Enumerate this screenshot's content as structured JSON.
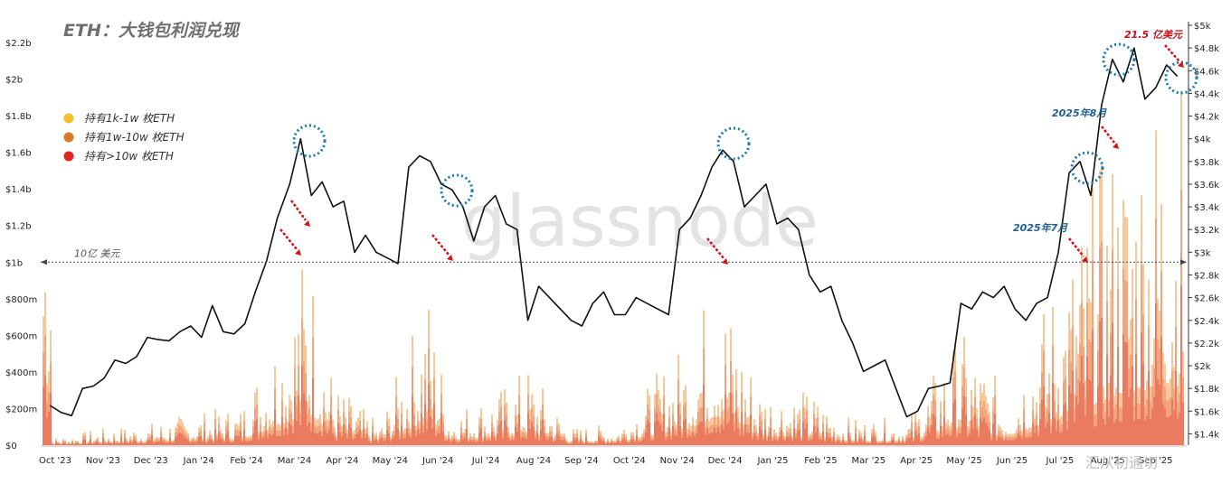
{
  "chart_data": {
    "type": "area",
    "title": "ETH：大钱包利润兑现",
    "watermark": "glassnode",
    "source_watermark": "汇从初通切",
    "x_tick_labels": [
      "Oct '23",
      "Nov '23",
      "Dec '23",
      "Jan '24",
      "Feb '24",
      "Mar '24",
      "Apr '24",
      "May '24",
      "Jun '24",
      "Jul '24",
      "Aug '24",
      "Sep '24",
      "Oct '24",
      "Nov '24",
      "Dec '24",
      "Jan '25",
      "Feb '25",
      "Mar '25",
      "Apr '25",
      "May '25",
      "Jun '25",
      "Jul '25",
      "Aug '25",
      "Sep '25"
    ],
    "y_left": {
      "unit": "USD",
      "ticks": [
        "$0",
        "$200m",
        "$400m",
        "$600m",
        "$800m",
        "$1b",
        "$1.2b",
        "$1.4b",
        "$1.6b",
        "$1.8b",
        "$2b",
        "$2.2b"
      ],
      "ylim": [
        0,
        2200000000
      ]
    },
    "y_right": {
      "unit": "ETH price USD",
      "ticks": [
        "$1.4k",
        "$1.6k",
        "$1.8k",
        "$2k",
        "$2.2k",
        "$2.4k",
        "$2.6k",
        "$2.8k",
        "$3k",
        "$3.2k",
        "$3.4k",
        "$3.6k",
        "$3.8k",
        "$4k",
        "$4.2k",
        "$4.4k",
        "$4.6k",
        "$4.8k",
        "$5k"
      ],
      "ylim": [
        1300,
        5000
      ]
    },
    "legend": [
      {
        "label": "持有1k-1w 枚ETH",
        "color": "#f4bd2a"
      },
      {
        "label": "持有1w-10w 枚ETH",
        "color": "#d9782a"
      },
      {
        "label": "持有>10w 枚ETH",
        "color": "#e0281f"
      }
    ],
    "series_colors": {
      "outer": "#f7c89c",
      "middle": "#f2a47c",
      "inner": "#ea7b60",
      "price": "#111111"
    },
    "reference_line": {
      "value": 1000000000,
      "label": "10亿 美元"
    },
    "annotations": [
      {
        "text": "2025年7月",
        "color": "#1d5e8f"
      },
      {
        "text": "2025年8月",
        "color": "#1d5e8f"
      },
      {
        "text": "21.5 亿美元",
        "color": "#c0121b"
      }
    ],
    "price_series": [
      [
        "2023-10-01",
        1650
      ],
      [
        "2023-10-08",
        1590
      ],
      [
        "2023-10-15",
        1560
      ],
      [
        "2023-10-22",
        1800
      ],
      [
        "2023-10-29",
        1820
      ],
      [
        "2023-11-05",
        1890
      ],
      [
        "2023-11-12",
        2050
      ],
      [
        "2023-11-19",
        2020
      ],
      [
        "2023-11-26",
        2080
      ],
      [
        "2023-12-03",
        2250
      ],
      [
        "2023-12-10",
        2230
      ],
      [
        "2023-12-17",
        2220
      ],
      [
        "2023-12-24",
        2300
      ],
      [
        "2023-12-31",
        2350
      ],
      [
        "2024-01-07",
        2250
      ],
      [
        "2024-01-14",
        2530
      ],
      [
        "2024-01-21",
        2300
      ],
      [
        "2024-01-28",
        2280
      ],
      [
        "2024-02-04",
        2370
      ],
      [
        "2024-02-11",
        2660
      ],
      [
        "2024-02-18",
        2920
      ],
      [
        "2024-02-25",
        3300
      ],
      [
        "2024-03-04",
        3600
      ],
      [
        "2024-03-11",
        4000
      ],
      [
        "2024-03-18",
        3500
      ],
      [
        "2024-03-25",
        3620
      ],
      [
        "2024-04-01",
        3400
      ],
      [
        "2024-04-08",
        3450
      ],
      [
        "2024-04-15",
        3000
      ],
      [
        "2024-04-22",
        3150
      ],
      [
        "2024-04-29",
        3000
      ],
      [
        "2024-05-06",
        2950
      ],
      [
        "2024-05-13",
        2900
      ],
      [
        "2024-05-20",
        3750
      ],
      [
        "2024-05-27",
        3850
      ],
      [
        "2024-06-03",
        3800
      ],
      [
        "2024-06-10",
        3600
      ],
      [
        "2024-06-17",
        3550
      ],
      [
        "2024-06-24",
        3400
      ],
      [
        "2024-07-01",
        3100
      ],
      [
        "2024-07-08",
        3400
      ],
      [
        "2024-07-15",
        3500
      ],
      [
        "2024-07-22",
        3250
      ],
      [
        "2024-07-29",
        3200
      ],
      [
        "2024-08-05",
        2400
      ],
      [
        "2024-08-12",
        2700
      ],
      [
        "2024-08-19",
        2600
      ],
      [
        "2024-08-26",
        2500
      ],
      [
        "2024-09-02",
        2400
      ],
      [
        "2024-09-09",
        2350
      ],
      [
        "2024-09-16",
        2550
      ],
      [
        "2024-09-23",
        2650
      ],
      [
        "2024-09-30",
        2450
      ],
      [
        "2024-10-07",
        2450
      ],
      [
        "2024-10-14",
        2600
      ],
      [
        "2024-10-21",
        2550
      ],
      [
        "2024-10-28",
        2500
      ],
      [
        "2024-11-04",
        2450
      ],
      [
        "2024-11-11",
        3200
      ],
      [
        "2024-11-18",
        3300
      ],
      [
        "2024-11-25",
        3500
      ],
      [
        "2024-12-02",
        3750
      ],
      [
        "2024-12-09",
        3900
      ],
      [
        "2024-12-16",
        3800
      ],
      [
        "2024-12-23",
        3400
      ],
      [
        "2024-12-30",
        3500
      ],
      [
        "2025-01-06",
        3600
      ],
      [
        "2025-01-13",
        3250
      ],
      [
        "2025-01-20",
        3300
      ],
      [
        "2025-01-27",
        3200
      ],
      [
        "2025-02-03",
        2800
      ],
      [
        "2025-02-10",
        2650
      ],
      [
        "2025-02-17",
        2700
      ],
      [
        "2025-02-24",
        2400
      ],
      [
        "2025-03-03",
        2200
      ],
      [
        "2025-03-10",
        1950
      ],
      [
        "2025-03-17",
        2000
      ],
      [
        "2025-03-24",
        2050
      ],
      [
        "2025-03-31",
        1800
      ],
      [
        "2025-04-07",
        1550
      ],
      [
        "2025-04-14",
        1600
      ],
      [
        "2025-04-21",
        1800
      ],
      [
        "2025-04-28",
        1820
      ],
      [
        "2025-05-05",
        1850
      ],
      [
        "2025-05-12",
        2550
      ],
      [
        "2025-05-19",
        2500
      ],
      [
        "2025-05-26",
        2650
      ],
      [
        "2025-06-02",
        2600
      ],
      [
        "2025-06-09",
        2700
      ],
      [
        "2025-06-16",
        2500
      ],
      [
        "2025-06-23",
        2400
      ],
      [
        "2025-06-30",
        2550
      ],
      [
        "2025-07-07",
        2600
      ],
      [
        "2025-07-14",
        3000
      ],
      [
        "2025-07-21",
        3700
      ],
      [
        "2025-07-28",
        3800
      ],
      [
        "2025-08-04",
        3500
      ],
      [
        "2025-08-11",
        4300
      ],
      [
        "2025-08-18",
        4700
      ],
      [
        "2025-08-25",
        4500
      ],
      [
        "2025-09-01",
        4800
      ],
      [
        "2025-09-08",
        4350
      ],
      [
        "2025-09-15",
        4450
      ],
      [
        "2025-09-22",
        4650
      ],
      [
        "2025-09-29",
        4550
      ]
    ],
    "profit_series": [
      [
        "2023-10-01",
        40000000
      ],
      [
        "2023-11-01",
        90000000
      ],
      [
        "2023-12-01",
        120000000
      ],
      [
        "2024-01-01",
        180000000
      ],
      [
        "2024-02-01",
        220000000
      ],
      [
        "2024-03-01",
        800000000
      ],
      [
        "2024-03-15",
        1200000000
      ],
      [
        "2024-04-01",
        350000000
      ],
      [
        "2024-05-01",
        120000000
      ],
      [
        "2024-06-01",
        900000000
      ],
      [
        "2024-06-15",
        200000000
      ],
      [
        "2024-07-15",
        300000000
      ],
      [
        "2024-08-05",
        450000000
      ],
      [
        "2024-09-01",
        100000000
      ],
      [
        "2024-10-01",
        120000000
      ],
      [
        "2024-11-15",
        600000000
      ],
      [
        "2024-12-05",
        1000000000
      ],
      [
        "2025-01-01",
        350000000
      ],
      [
        "2025-02-03",
        300000000
      ],
      [
        "2025-03-01",
        150000000
      ],
      [
        "2025-04-07",
        150000000
      ],
      [
        "2025-05-10",
        650000000
      ],
      [
        "2025-06-10",
        300000000
      ],
      [
        "2025-07-20",
        1100000000
      ],
      [
        "2025-08-15",
        1700000000
      ],
      [
        "2025-09-20",
        2150000000
      ]
    ]
  }
}
